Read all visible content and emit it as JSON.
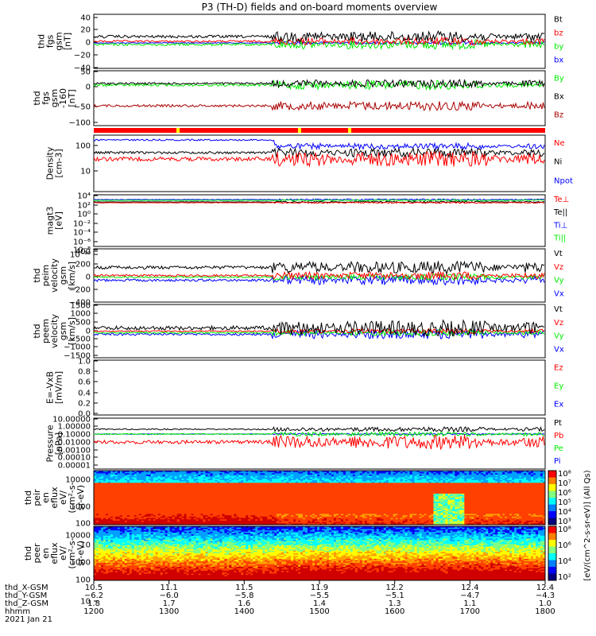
{
  "title": "P3 (TH-D) fields and on-board moments overview",
  "colors": {
    "black": "#000000",
    "red": "#ff0000",
    "green": "#00ee00",
    "blue": "#0000ff",
    "darkred": "#aa0000",
    "yellow": "#ffff00"
  },
  "chart_data": [
    {
      "type": "line",
      "ylabel": [
        "thd",
        "fgs",
        "gsm",
        "[nT]"
      ],
      "yticks": [
        "40",
        "20",
        "0",
        "−20",
        "−40"
      ],
      "ylim": [
        -40,
        40
      ],
      "legend": [
        {
          "name": "Bt",
          "color": "#000000"
        },
        {
          "name": "bz",
          "color": "#ff0000"
        },
        {
          "name": "by",
          "color": "#00ee00"
        },
        {
          "name": "bx",
          "color": "#0000ff"
        }
      ]
    },
    {
      "type": "line",
      "ylabel": [
        "thd",
        "fgs",
        "gsm",
        "-160",
        "[nT]"
      ],
      "yticks": [
        "50",
        "0",
        "−50",
        "−100"
      ],
      "ylim": [
        -120,
        50
      ],
      "legend": [
        {
          "name": "By",
          "color": "#00ee00"
        },
        {
          "name": "Bx",
          "color": "#000000"
        },
        {
          "name": "Bz",
          "color": "#aa0000"
        }
      ]
    },
    {
      "type": "line",
      "ylabel": [
        "Density",
        "[cm-3]"
      ],
      "yticks": [
        "100",
        "10"
      ],
      "scale": "log",
      "legend": [
        {
          "name": "Ne",
          "color": "#ff0000"
        },
        {
          "name": "Ni",
          "color": "#000000"
        },
        {
          "name": "Npot",
          "color": "#0000ff"
        }
      ]
    },
    {
      "type": "line",
      "ylabel": [
        "magt3",
        "[eV]"
      ],
      "yticks": [
        "10⁴",
        "10²",
        "10⁰",
        "10⁻²",
        "10⁻⁴",
        "10⁻⁶",
        "10⁻⁸",
        "10⁻¹⁰"
      ],
      "scale": "log",
      "legend": [
        {
          "name": "Te⊥",
          "color": "#ff0000"
        },
        {
          "name": "Te||",
          "color": "#000000"
        },
        {
          "name": "Ti⊥",
          "color": "#0000ff"
        },
        {
          "name": "Ti||",
          "color": "#00ee00"
        }
      ]
    },
    {
      "type": "line",
      "ylabel": [
        "thd",
        "peim",
        "velocity",
        "gsm",
        "[km/s]"
      ],
      "yticks": [
        "400",
        "200",
        "0",
        "−200",
        "−400"
      ],
      "ylim": [
        -400,
        400
      ],
      "legend": [
        {
          "name": "Vt",
          "color": "#000000"
        },
        {
          "name": "Vz",
          "color": "#ff0000"
        },
        {
          "name": "Vy",
          "color": "#00ee00"
        },
        {
          "name": "Vx",
          "color": "#0000ff"
        }
      ]
    },
    {
      "type": "line",
      "ylabel": [
        "thd",
        "peem",
        "velocity",
        "gsm",
        "[km/s]"
      ],
      "yticks": [
        "1500",
        "1000",
        "500",
        "0",
        "−500",
        "−1000",
        "−1500"
      ],
      "ylim": [
        -1500,
        1500
      ],
      "legend": [
        {
          "name": "Vt",
          "color": "#000000"
        },
        {
          "name": "Vz",
          "color": "#ff0000"
        },
        {
          "name": "Vy",
          "color": "#00ee00"
        },
        {
          "name": "Vx",
          "color": "#0000ff"
        }
      ]
    },
    {
      "type": "line",
      "ylabel": [
        "E=-VxB",
        "[mV/m]"
      ],
      "yticks": [
        "1.0",
        "0.8",
        "0.6",
        "0.4",
        "0.2",
        "0.0"
      ],
      "ylim": [
        0,
        1
      ],
      "legend": [
        {
          "name": "Ez",
          "color": "#ff0000"
        },
        {
          "name": "Ey",
          "color": "#00ee00"
        },
        {
          "name": "Ex",
          "color": "#0000ff"
        }
      ]
    },
    {
      "type": "line",
      "ylabel": [
        "Pressure",
        "[nPa]"
      ],
      "yticks": [
        "10.00000",
        "1.00000",
        "0.10000",
        "0.01000",
        "0.00100",
        "0.00010",
        "0.00001"
      ],
      "scale": "log",
      "legend": [
        {
          "name": "Pt",
          "color": "#000000"
        },
        {
          "name": "Pb",
          "color": "#ff0000"
        },
        {
          "name": "Pe",
          "color": "#00ee00"
        },
        {
          "name": "Pi",
          "color": "#0000ff"
        }
      ]
    },
    {
      "type": "heatmap",
      "ylabel": [
        "thd",
        "peir",
        "en",
        "eflux",
        "eV/",
        "(cm²-s-",
        "sr-eV)"
      ],
      "yticks": [
        "10000",
        "1000",
        "100",
        "10"
      ],
      "scale": "log"
    },
    {
      "type": "heatmap",
      "ylabel": [
        "thd",
        "peer",
        "en",
        "eflux",
        "eV/",
        "(cm²-s-",
        "sr-eV)"
      ],
      "yticks": [
        "10000",
        "1000",
        "100",
        "10"
      ],
      "scale": "log"
    }
  ],
  "colorbars": [
    {
      "ticks": [
        "10⁸",
        "10⁷",
        "10⁶",
        "10⁵",
        "10⁴",
        "10³"
      ]
    },
    {
      "ticks": [
        "10⁸",
        "10⁶",
        "10⁴",
        "10²"
      ]
    }
  ],
  "colorbar_label": "[eV/(cm^2-s-sr-eV)] (All Qs)",
  "xaxis": {
    "rows": [
      {
        "label": "thd_X-GSM",
        "values": [
          "10.5",
          "11.1",
          "11.5",
          "11.9",
          "12.2",
          "12.4",
          "12.4"
        ]
      },
      {
        "label": "thd_Y-GSM",
        "values": [
          "−6.2",
          "−6.0",
          "−5.8",
          "−5.5",
          "−5.1",
          "−4.7",
          "−4.3"
        ]
      },
      {
        "label": "thd_Z-GSM",
        "values": [
          "1.8",
          "1.7",
          "1.6",
          "1.4",
          "1.3",
          "1.1",
          "1.0"
        ]
      },
      {
        "label": "hhmm",
        "values": [
          "1200",
          "1300",
          "1400",
          "1500",
          "1600",
          "1700",
          "1800"
        ]
      }
    ],
    "date": "2021 Jan 21"
  }
}
